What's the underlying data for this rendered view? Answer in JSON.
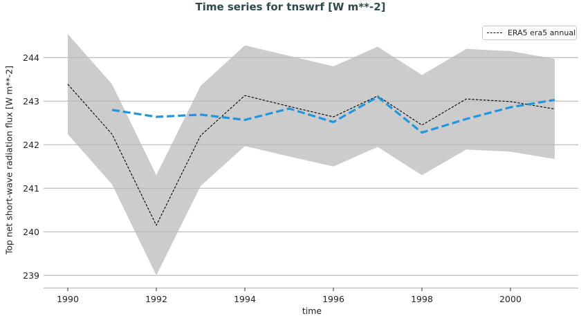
{
  "chart_data": {
    "type": "line",
    "title": "Time series for tnswrf [W m**-2]",
    "xlabel": "time",
    "ylabel": "Top net short-wave radiation flux [W m**-2]",
    "ylim": [
      238.7,
      244.7
    ],
    "xlim": [
      1989.4,
      2001.5
    ],
    "x_ticks": [
      "1990",
      "1992",
      "1994",
      "1996",
      "1998",
      "2000"
    ],
    "y_ticks": [
      "239",
      "240",
      "241",
      "242",
      "243",
      "244"
    ],
    "grid": "horizontal",
    "legend_position": "top-right",
    "x": [
      1990,
      1991,
      1992,
      1993,
      1994,
      1995,
      1996,
      1997,
      1998,
      1999,
      2000,
      2001
    ],
    "series": [
      {
        "name": "ERA5 era5 annual",
        "style": "dashed",
        "color": "#000000",
        "values": [
          243.39,
          242.24,
          240.15,
          242.21,
          243.13,
          242.88,
          242.64,
          243.12,
          242.45,
          243.05,
          242.99,
          242.82
        ]
      },
      {
        "style": "dashed-thick",
        "color": "#1f96de",
        "values": [
          null,
          242.8,
          242.64,
          242.69,
          242.57,
          242.83,
          242.52,
          243.1,
          242.28,
          242.59,
          242.86,
          243.03
        ]
      }
    ],
    "band": {
      "color": "#cccccc",
      "upper": [
        244.54,
        243.39,
        241.3,
        243.35,
        244.28,
        244.04,
        243.8,
        244.25,
        243.6,
        244.2,
        244.15,
        243.97
      ],
      "lower": [
        242.24,
        241.09,
        239.0,
        241.05,
        241.97,
        241.73,
        241.5,
        241.95,
        241.3,
        241.89,
        241.84,
        241.67
      ]
    }
  }
}
